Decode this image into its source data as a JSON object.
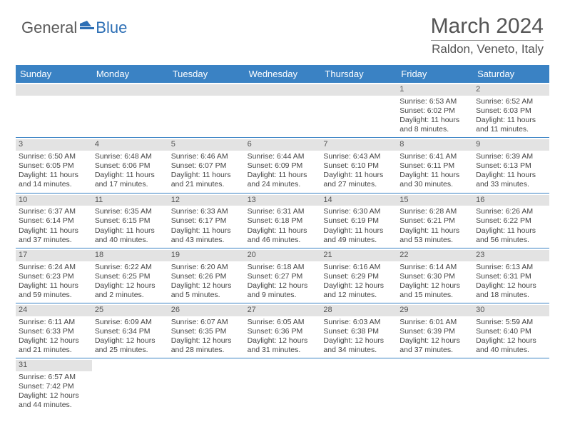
{
  "logo": {
    "text1": "General",
    "text2": "Blue"
  },
  "title": "March 2024",
  "location": "Raldon, Veneto, Italy",
  "colors": {
    "header_bg": "#3a82c4",
    "header_text": "#ffffff",
    "daynum_bg": "#e3e3e3",
    "rule": "#3a82c4",
    "logo_gray": "#5a5a5a",
    "logo_blue": "#2d6fb5",
    "text": "#444444"
  },
  "day_names": [
    "Sunday",
    "Monday",
    "Tuesday",
    "Wednesday",
    "Thursday",
    "Friday",
    "Saturday"
  ],
  "weeks": [
    [
      {
        "blank": true
      },
      {
        "blank": true
      },
      {
        "blank": true
      },
      {
        "blank": true
      },
      {
        "blank": true
      },
      {
        "d": "1",
        "sr": "Sunrise: 6:53 AM",
        "ss": "Sunset: 6:02 PM",
        "dl1": "Daylight: 11 hours",
        "dl2": "and 8 minutes."
      },
      {
        "d": "2",
        "sr": "Sunrise: 6:52 AM",
        "ss": "Sunset: 6:03 PM",
        "dl1": "Daylight: 11 hours",
        "dl2": "and 11 minutes."
      }
    ],
    [
      {
        "d": "3",
        "sr": "Sunrise: 6:50 AM",
        "ss": "Sunset: 6:05 PM",
        "dl1": "Daylight: 11 hours",
        "dl2": "and 14 minutes."
      },
      {
        "d": "4",
        "sr": "Sunrise: 6:48 AM",
        "ss": "Sunset: 6:06 PM",
        "dl1": "Daylight: 11 hours",
        "dl2": "and 17 minutes."
      },
      {
        "d": "5",
        "sr": "Sunrise: 6:46 AM",
        "ss": "Sunset: 6:07 PM",
        "dl1": "Daylight: 11 hours",
        "dl2": "and 21 minutes."
      },
      {
        "d": "6",
        "sr": "Sunrise: 6:44 AM",
        "ss": "Sunset: 6:09 PM",
        "dl1": "Daylight: 11 hours",
        "dl2": "and 24 minutes."
      },
      {
        "d": "7",
        "sr": "Sunrise: 6:43 AM",
        "ss": "Sunset: 6:10 PM",
        "dl1": "Daylight: 11 hours",
        "dl2": "and 27 minutes."
      },
      {
        "d": "8",
        "sr": "Sunrise: 6:41 AM",
        "ss": "Sunset: 6:11 PM",
        "dl1": "Daylight: 11 hours",
        "dl2": "and 30 minutes."
      },
      {
        "d": "9",
        "sr": "Sunrise: 6:39 AM",
        "ss": "Sunset: 6:13 PM",
        "dl1": "Daylight: 11 hours",
        "dl2": "and 33 minutes."
      }
    ],
    [
      {
        "d": "10",
        "sr": "Sunrise: 6:37 AM",
        "ss": "Sunset: 6:14 PM",
        "dl1": "Daylight: 11 hours",
        "dl2": "and 37 minutes."
      },
      {
        "d": "11",
        "sr": "Sunrise: 6:35 AM",
        "ss": "Sunset: 6:15 PM",
        "dl1": "Daylight: 11 hours",
        "dl2": "and 40 minutes."
      },
      {
        "d": "12",
        "sr": "Sunrise: 6:33 AM",
        "ss": "Sunset: 6:17 PM",
        "dl1": "Daylight: 11 hours",
        "dl2": "and 43 minutes."
      },
      {
        "d": "13",
        "sr": "Sunrise: 6:31 AM",
        "ss": "Sunset: 6:18 PM",
        "dl1": "Daylight: 11 hours",
        "dl2": "and 46 minutes."
      },
      {
        "d": "14",
        "sr": "Sunrise: 6:30 AM",
        "ss": "Sunset: 6:19 PM",
        "dl1": "Daylight: 11 hours",
        "dl2": "and 49 minutes."
      },
      {
        "d": "15",
        "sr": "Sunrise: 6:28 AM",
        "ss": "Sunset: 6:21 PM",
        "dl1": "Daylight: 11 hours",
        "dl2": "and 53 minutes."
      },
      {
        "d": "16",
        "sr": "Sunrise: 6:26 AM",
        "ss": "Sunset: 6:22 PM",
        "dl1": "Daylight: 11 hours",
        "dl2": "and 56 minutes."
      }
    ],
    [
      {
        "d": "17",
        "sr": "Sunrise: 6:24 AM",
        "ss": "Sunset: 6:23 PM",
        "dl1": "Daylight: 11 hours",
        "dl2": "and 59 minutes."
      },
      {
        "d": "18",
        "sr": "Sunrise: 6:22 AM",
        "ss": "Sunset: 6:25 PM",
        "dl1": "Daylight: 12 hours",
        "dl2": "and 2 minutes."
      },
      {
        "d": "19",
        "sr": "Sunrise: 6:20 AM",
        "ss": "Sunset: 6:26 PM",
        "dl1": "Daylight: 12 hours",
        "dl2": "and 5 minutes."
      },
      {
        "d": "20",
        "sr": "Sunrise: 6:18 AM",
        "ss": "Sunset: 6:27 PM",
        "dl1": "Daylight: 12 hours",
        "dl2": "and 9 minutes."
      },
      {
        "d": "21",
        "sr": "Sunrise: 6:16 AM",
        "ss": "Sunset: 6:29 PM",
        "dl1": "Daylight: 12 hours",
        "dl2": "and 12 minutes."
      },
      {
        "d": "22",
        "sr": "Sunrise: 6:14 AM",
        "ss": "Sunset: 6:30 PM",
        "dl1": "Daylight: 12 hours",
        "dl2": "and 15 minutes."
      },
      {
        "d": "23",
        "sr": "Sunrise: 6:13 AM",
        "ss": "Sunset: 6:31 PM",
        "dl1": "Daylight: 12 hours",
        "dl2": "and 18 minutes."
      }
    ],
    [
      {
        "d": "24",
        "sr": "Sunrise: 6:11 AM",
        "ss": "Sunset: 6:33 PM",
        "dl1": "Daylight: 12 hours",
        "dl2": "and 21 minutes."
      },
      {
        "d": "25",
        "sr": "Sunrise: 6:09 AM",
        "ss": "Sunset: 6:34 PM",
        "dl1": "Daylight: 12 hours",
        "dl2": "and 25 minutes."
      },
      {
        "d": "26",
        "sr": "Sunrise: 6:07 AM",
        "ss": "Sunset: 6:35 PM",
        "dl1": "Daylight: 12 hours",
        "dl2": "and 28 minutes."
      },
      {
        "d": "27",
        "sr": "Sunrise: 6:05 AM",
        "ss": "Sunset: 6:36 PM",
        "dl1": "Daylight: 12 hours",
        "dl2": "and 31 minutes."
      },
      {
        "d": "28",
        "sr": "Sunrise: 6:03 AM",
        "ss": "Sunset: 6:38 PM",
        "dl1": "Daylight: 12 hours",
        "dl2": "and 34 minutes."
      },
      {
        "d": "29",
        "sr": "Sunrise: 6:01 AM",
        "ss": "Sunset: 6:39 PM",
        "dl1": "Daylight: 12 hours",
        "dl2": "and 37 minutes."
      },
      {
        "d": "30",
        "sr": "Sunrise: 5:59 AM",
        "ss": "Sunset: 6:40 PM",
        "dl1": "Daylight: 12 hours",
        "dl2": "and 40 minutes."
      }
    ],
    [
      {
        "d": "31",
        "sr": "Sunrise: 6:57 AM",
        "ss": "Sunset: 7:42 PM",
        "dl1": "Daylight: 12 hours",
        "dl2": "and 44 minutes."
      },
      {
        "blank": true
      },
      {
        "blank": true
      },
      {
        "blank": true
      },
      {
        "blank": true
      },
      {
        "blank": true
      },
      {
        "blank": true
      }
    ]
  ]
}
